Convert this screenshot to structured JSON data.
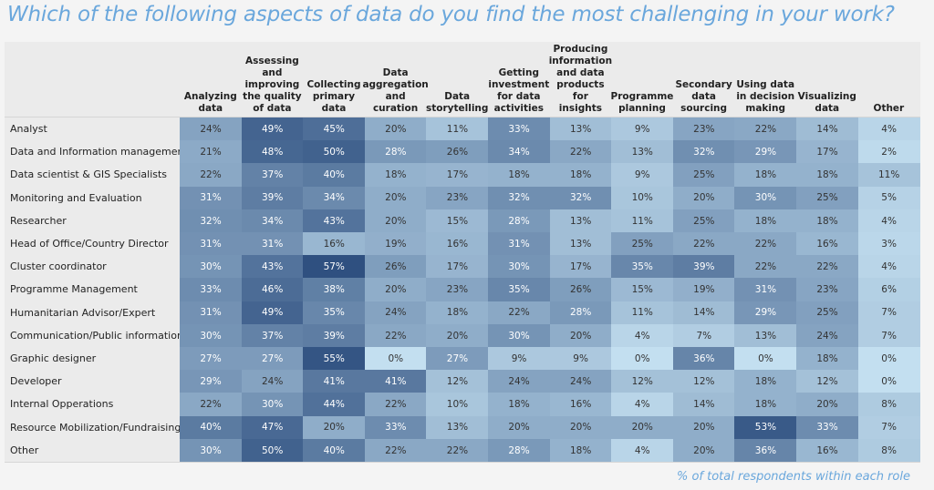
{
  "title": "Which of the following aspects of data do you find the most challenging in your work?",
  "footnote": "% of total respondents within each role",
  "chart_data": {
    "type": "heatmap",
    "title": "Which of the following aspects of data do you find the most challenging in your work?",
    "value_unit": "%",
    "color_scale": {
      "low": "#c3dff0",
      "high": "#2f5080",
      "min": 0,
      "max": 57
    },
    "columns": [
      "Analyzing data",
      "Assessing and improving the quality of data",
      "Collecting primary data",
      "Data aggregation and curation",
      "Data storytelling",
      "Getting investment for data activities",
      "Producing information and data products for insights",
      "Programme planning",
      "Secondary data sourcing",
      "Using data in decision making",
      "Visualizing data",
      "Other"
    ],
    "rows": [
      {
        "label": "Analyst",
        "values": [
          24,
          49,
          45,
          20,
          11,
          33,
          13,
          9,
          23,
          22,
          14,
          4
        ]
      },
      {
        "label": "Data and Information management",
        "values": [
          21,
          48,
          50,
          28,
          26,
          34,
          22,
          13,
          32,
          29,
          17,
          2
        ]
      },
      {
        "label": "Data scientist & GIS Specialists",
        "values": [
          22,
          37,
          40,
          18,
          17,
          18,
          18,
          9,
          25,
          18,
          18,
          11
        ]
      },
      {
        "label": "Monitoring and Evaluation",
        "values": [
          31,
          39,
          34,
          20,
          23,
          32,
          32,
          10,
          20,
          30,
          25,
          5
        ]
      },
      {
        "label": "Researcher",
        "values": [
          32,
          34,
          43,
          20,
          15,
          28,
          13,
          11,
          25,
          18,
          18,
          4
        ]
      },
      {
        "label": "Head of Office/Country Director",
        "values": [
          31,
          31,
          16,
          19,
          16,
          31,
          13,
          25,
          22,
          22,
          16,
          3
        ]
      },
      {
        "label": "Cluster coordinator",
        "values": [
          30,
          43,
          57,
          26,
          17,
          30,
          17,
          35,
          39,
          22,
          22,
          4
        ]
      },
      {
        "label": "Programme Management",
        "values": [
          33,
          46,
          38,
          20,
          23,
          35,
          26,
          15,
          19,
          31,
          23,
          6
        ]
      },
      {
        "label": "Humanitarian Advisor/Expert",
        "values": [
          31,
          49,
          35,
          24,
          18,
          22,
          28,
          11,
          14,
          29,
          25,
          7
        ]
      },
      {
        "label": "Communication/Public information",
        "values": [
          30,
          37,
          39,
          22,
          20,
          30,
          20,
          4,
          7,
          13,
          24,
          7
        ]
      },
      {
        "label": "Graphic designer",
        "values": [
          27,
          27,
          55,
          0,
          27,
          9,
          9,
          0,
          36,
          0,
          18,
          0
        ]
      },
      {
        "label": "Developer",
        "values": [
          29,
          24,
          41,
          41,
          12,
          24,
          24,
          12,
          12,
          18,
          12,
          0
        ]
      },
      {
        "label": "Internal Opperations",
        "values": [
          22,
          30,
          44,
          22,
          10,
          18,
          16,
          4,
          14,
          18,
          20,
          8
        ]
      },
      {
        "label": "Resource Mobilization/Fundraising",
        "values": [
          40,
          47,
          20,
          33,
          13,
          20,
          20,
          20,
          20,
          53,
          33,
          7
        ]
      },
      {
        "label": "Other",
        "values": [
          30,
          50,
          40,
          22,
          22,
          28,
          18,
          4,
          20,
          36,
          16,
          8
        ]
      }
    ]
  }
}
